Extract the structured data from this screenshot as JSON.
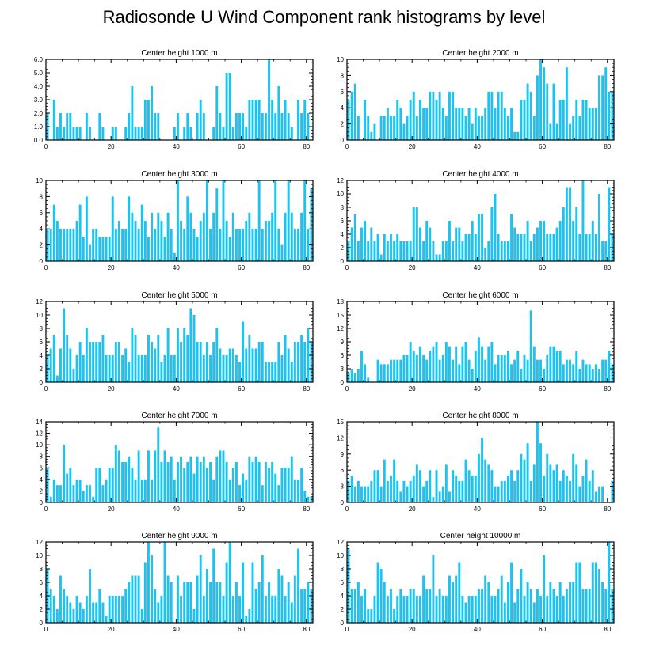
{
  "title": "Radiosonde U Wind Component rank histograms by level",
  "colors": {
    "bar": "#1cc3f0",
    "axis": "#000000",
    "background": "#ffffff"
  },
  "chart_data": [
    {
      "type": "bar",
      "title": "Center height 1000 m",
      "xlim": [
        0,
        82
      ],
      "ylim": [
        0,
        6
      ],
      "xticks": [
        "0",
        "20",
        "40",
        "60",
        "80"
      ],
      "yticks": [
        "0.0",
        "1.0",
        "2.0",
        "3.0",
        "4.0",
        "5.0",
        "6.0"
      ],
      "values": [
        2,
        0,
        3,
        1,
        2,
        1,
        2,
        2,
        1,
        1,
        1,
        0,
        2,
        1,
        0,
        0,
        2,
        1,
        0,
        0,
        1,
        1,
        0,
        0,
        1,
        2,
        4,
        1,
        1,
        1,
        3,
        3,
        4,
        2,
        2,
        0,
        0,
        0,
        0,
        1,
        2,
        0,
        1,
        2,
        1,
        0,
        2,
        3,
        2,
        0,
        0,
        1,
        4,
        2,
        1,
        5,
        5,
        1,
        2,
        2,
        2,
        1,
        3,
        3,
        3,
        3,
        2,
        2,
        6,
        3,
        2,
        4,
        2,
        3,
        2,
        1,
        0,
        3,
        2,
        3,
        2,
        0
      ]
    },
    {
      "type": "bar",
      "title": "Center height 2000 m",
      "xlim": [
        0,
        82
      ],
      "ylim": [
        0,
        10
      ],
      "xticks": [
        "0",
        "20",
        "40",
        "60",
        "80"
      ],
      "yticks": [
        "0",
        "2",
        "4",
        "6",
        "8",
        "10"
      ],
      "values": [
        5,
        6,
        7,
        3,
        0,
        5,
        3,
        1,
        2,
        0,
        3,
        3,
        4,
        3,
        3,
        5,
        4,
        2,
        3,
        5,
        6,
        3,
        5,
        4,
        4,
        6,
        6,
        5,
        6,
        4,
        3,
        6,
        6,
        4,
        4,
        4,
        3,
        4,
        2,
        4,
        3,
        3,
        4,
        6,
        6,
        4,
        6,
        6,
        4,
        3,
        4,
        1,
        1,
        5,
        5,
        7,
        6,
        3,
        8,
        10,
        9,
        7,
        2,
        7,
        2,
        5,
        5,
        9,
        2,
        3,
        5,
        3,
        5,
        5,
        4,
        4,
        4,
        8,
        8,
        9,
        6,
        6
      ]
    },
    {
      "type": "bar",
      "title": "Center height 3000 m",
      "xlim": [
        0,
        82
      ],
      "ylim": [
        0,
        10
      ],
      "xticks": [
        "0",
        "20",
        "40",
        "60",
        "80"
      ],
      "yticks": [
        "0",
        "2",
        "4",
        "6",
        "8",
        "10"
      ],
      "values": [
        4,
        4,
        7,
        5,
        4,
        4,
        4,
        4,
        4,
        5,
        7,
        3,
        8,
        2,
        4,
        4,
        3,
        3,
        3,
        3,
        8,
        4,
        5,
        4,
        4,
        8,
        6,
        5,
        4,
        7,
        5,
        3,
        6,
        4,
        6,
        5,
        3,
        6,
        4,
        1,
        10,
        5,
        4,
        8,
        6,
        4,
        3,
        5,
        6,
        10,
        4,
        6,
        9,
        4,
        10,
        5,
        3,
        6,
        4,
        4,
        4,
        5,
        6,
        4,
        4,
        10,
        4,
        5,
        5,
        6,
        10,
        4,
        2,
        6,
        10,
        6,
        4,
        4,
        6,
        10,
        4,
        9
      ]
    },
    {
      "type": "bar",
      "title": "Center height 4000 m",
      "xlim": [
        0,
        82
      ],
      "ylim": [
        0,
        12
      ],
      "xticks": [
        "0",
        "20",
        "40",
        "60",
        "80"
      ],
      "yticks": [
        "0",
        "2",
        "4",
        "6",
        "8",
        "10",
        "12"
      ],
      "values": [
        3,
        5,
        7,
        3,
        5,
        6,
        3,
        5,
        3,
        4,
        1,
        4,
        3,
        4,
        3,
        4,
        3,
        3,
        3,
        3,
        8,
        8,
        5,
        3,
        6,
        5,
        3,
        1,
        1,
        3,
        3,
        6,
        3,
        5,
        5,
        3,
        4,
        4,
        6,
        4,
        7,
        7,
        2,
        3,
        8,
        10,
        4,
        3,
        3,
        3,
        7,
        5,
        4,
        4,
        4,
        6,
        3,
        4,
        5,
        6,
        6,
        4,
        4,
        4,
        5,
        6,
        8,
        11,
        11,
        6,
        8,
        4,
        12,
        4,
        4,
        6,
        4,
        10,
        3,
        3,
        11,
        4
      ]
    },
    {
      "type": "bar",
      "title": "Center height 5000 m",
      "xlim": [
        0,
        82
      ],
      "ylim": [
        0,
        12
      ],
      "xticks": [
        "0",
        "20",
        "40",
        "60",
        "80"
      ],
      "yticks": [
        "0",
        "2",
        "4",
        "6",
        "8",
        "10",
        "12"
      ],
      "values": [
        4,
        5,
        7,
        1,
        5,
        11,
        7,
        5,
        2,
        4,
        6,
        4,
        8,
        6,
        6,
        6,
        6,
        7,
        4,
        4,
        4,
        6,
        6,
        4,
        5,
        3,
        8,
        7,
        4,
        4,
        4,
        7,
        6,
        5,
        7,
        3,
        4,
        8,
        4,
        4,
        8,
        6,
        8,
        7,
        11,
        10,
        6,
        6,
        4,
        6,
        4,
        6,
        8,
        5,
        4,
        4,
        5,
        5,
        4,
        3,
        9,
        5,
        7,
        5,
        5,
        6,
        6,
        3,
        3,
        3,
        3,
        6,
        4,
        7,
        5,
        3,
        6,
        6,
        7,
        6,
        8,
        6
      ]
    },
    {
      "type": "bar",
      "title": "Center height 6000 m",
      "xlim": [
        0,
        82
      ],
      "ylim": [
        0,
        18
      ],
      "xticks": [
        "0",
        "20",
        "40",
        "60",
        "80"
      ],
      "yticks": [
        "0",
        "3",
        "6",
        "9",
        "12",
        "15",
        "18"
      ],
      "values": [
        2,
        3,
        2,
        3,
        7,
        4,
        1,
        0,
        0,
        5,
        4,
        4,
        4,
        5,
        5,
        5,
        5,
        6,
        6,
        9,
        7,
        6,
        8,
        6,
        5,
        7,
        8,
        9,
        5,
        6,
        9,
        8,
        5,
        8,
        4,
        8,
        9,
        5,
        3,
        7,
        10,
        8,
        5,
        8,
        9,
        4,
        6,
        6,
        6,
        7,
        4,
        5,
        7,
        3,
        6,
        5,
        16,
        8,
        5,
        5,
        3,
        6,
        8,
        8,
        7,
        7,
        4,
        5,
        5,
        4,
        7,
        3,
        5,
        4,
        4,
        3,
        4,
        3,
        5,
        5,
        7,
        4
      ]
    },
    {
      "type": "bar",
      "title": "Center height 7000 m",
      "xlim": [
        0,
        82
      ],
      "ylim": [
        0,
        14
      ],
      "xticks": [
        "0",
        "20",
        "40",
        "60",
        "80"
      ],
      "yticks": [
        "0",
        "2",
        "4",
        "6",
        "8",
        "10",
        "12",
        "14"
      ],
      "values": [
        6,
        1,
        4,
        3,
        3,
        10,
        5,
        6,
        3,
        4,
        4,
        2,
        3,
        3,
        1,
        6,
        6,
        3,
        4,
        6,
        6,
        10,
        9,
        7,
        7,
        8,
        6,
        4,
        9,
        4,
        4,
        9,
        4,
        9,
        13,
        7,
        9,
        7,
        8,
        4,
        7,
        8,
        6,
        7,
        8,
        5,
        8,
        7,
        8,
        6,
        7,
        4,
        8,
        9,
        9,
        7,
        4,
        6,
        7,
        3,
        5,
        4,
        8,
        7,
        8,
        7,
        3,
        7,
        6,
        7,
        5,
        3,
        6,
        6,
        6,
        8,
        4,
        4,
        6,
        2,
        1,
        1
      ]
    },
    {
      "type": "bar",
      "title": "Center height 8000 m",
      "xlim": [
        0,
        82
      ],
      "ylim": [
        0,
        15
      ],
      "xticks": [
        "0",
        "20",
        "40",
        "60",
        "80"
      ],
      "yticks": [
        "0",
        "3",
        "6",
        "9",
        "12",
        "15"
      ],
      "values": [
        4,
        5,
        3,
        4,
        3,
        3,
        3,
        4,
        6,
        6,
        3,
        8,
        4,
        5,
        8,
        4,
        2,
        4,
        3,
        4,
        5,
        7,
        6,
        3,
        4,
        6,
        1,
        6,
        2,
        3,
        7,
        2,
        6,
        5,
        4,
        4,
        8,
        6,
        5,
        5,
        9,
        12,
        8,
        7,
        6,
        3,
        3,
        4,
        4,
        5,
        6,
        4,
        6,
        9,
        8,
        11,
        4,
        7,
        15,
        11,
        5,
        9,
        7,
        6,
        7,
        4,
        6,
        5,
        4,
        9,
        7,
        3,
        5,
        8,
        4,
        6,
        2,
        3,
        3,
        0,
        0,
        4
      ]
    },
    {
      "type": "bar",
      "title": "Center height 9000 m",
      "xlim": [
        0,
        82
      ],
      "ylim": [
        0,
        12
      ],
      "xticks": [
        "0",
        "20",
        "40",
        "60",
        "80"
      ],
      "yticks": [
        "0",
        "2",
        "4",
        "6",
        "8",
        "10",
        "12"
      ],
      "values": [
        8,
        5,
        4,
        2,
        7,
        5,
        4,
        3,
        2,
        4,
        3,
        2,
        4,
        8,
        3,
        3,
        5,
        3,
        1,
        4,
        4,
        4,
        4,
        4,
        5,
        6,
        7,
        7,
        7,
        2,
        9,
        12,
        10,
        5,
        3,
        4,
        12,
        7,
        6,
        0,
        7,
        4,
        6,
        6,
        6,
        2,
        7,
        10,
        4,
        8,
        6,
        11,
        6,
        6,
        4,
        9,
        12,
        4,
        6,
        4,
        9,
        1,
        2,
        9,
        5,
        6,
        10,
        4,
        6,
        4,
        4,
        8,
        7,
        4,
        6,
        3,
        7,
        11,
        5,
        5,
        6,
        5
      ]
    },
    {
      "type": "bar",
      "title": "Center height 10000 m",
      "xlim": [
        0,
        82
      ],
      "ylim": [
        0,
        12
      ],
      "xticks": [
        "0",
        "20",
        "40",
        "60",
        "80"
      ],
      "yticks": [
        "0",
        "2",
        "4",
        "6",
        "8",
        "10",
        "12"
      ],
      "values": [
        11,
        5,
        5,
        6,
        4,
        5,
        2,
        2,
        4,
        9,
        8,
        6,
        4,
        5,
        2,
        4,
        5,
        4,
        4,
        5,
        5,
        4,
        4,
        7,
        5,
        5,
        10,
        4,
        5,
        4,
        4,
        7,
        6,
        7,
        9,
        4,
        3,
        4,
        4,
        4,
        5,
        5,
        7,
        6,
        4,
        4,
        5,
        7,
        3,
        6,
        9,
        3,
        5,
        8,
        4,
        6,
        5,
        3,
        5,
        4,
        10,
        4,
        6,
        5,
        4,
        6,
        4,
        5,
        6,
        6,
        9,
        9,
        5,
        5,
        5,
        9,
        9,
        8,
        6,
        5,
        12,
        5
      ]
    }
  ]
}
